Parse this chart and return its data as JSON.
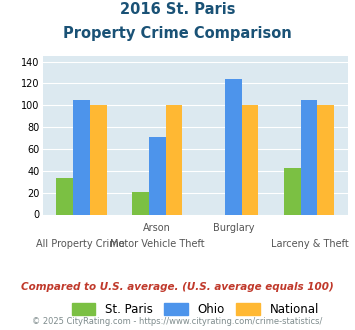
{
  "title_line1": "2016 St. Paris",
  "title_line2": "Property Crime Comparison",
  "st_paris": [
    33,
    21,
    0,
    43
  ],
  "ohio": [
    105,
    71,
    124,
    105
  ],
  "national": [
    100,
    100,
    100,
    100
  ],
  "color_st_paris": "#7bc043",
  "color_ohio": "#4d94eb",
  "color_national": "#ffb833",
  "ylim": [
    0,
    145
  ],
  "yticks": [
    0,
    20,
    40,
    60,
    80,
    100,
    120,
    140
  ],
  "top_labels": [
    "",
    "Arson",
    "Burglary",
    ""
  ],
  "bottom_labels": [
    "All Property Crime",
    "Motor Vehicle Theft",
    "",
    "Larceny & Theft"
  ],
  "footnote1": "Compared to U.S. average. (U.S. average equals 100)",
  "footnote2": "© 2025 CityRating.com - https://www.cityrating.com/crime-statistics/",
  "title_color": "#1a5276",
  "footnote1_color": "#c0392b",
  "footnote2_color": "#7f8c8d",
  "bg_color": "#dce9f0",
  "legend_labels": [
    "St. Paris",
    "Ohio",
    "National"
  ]
}
